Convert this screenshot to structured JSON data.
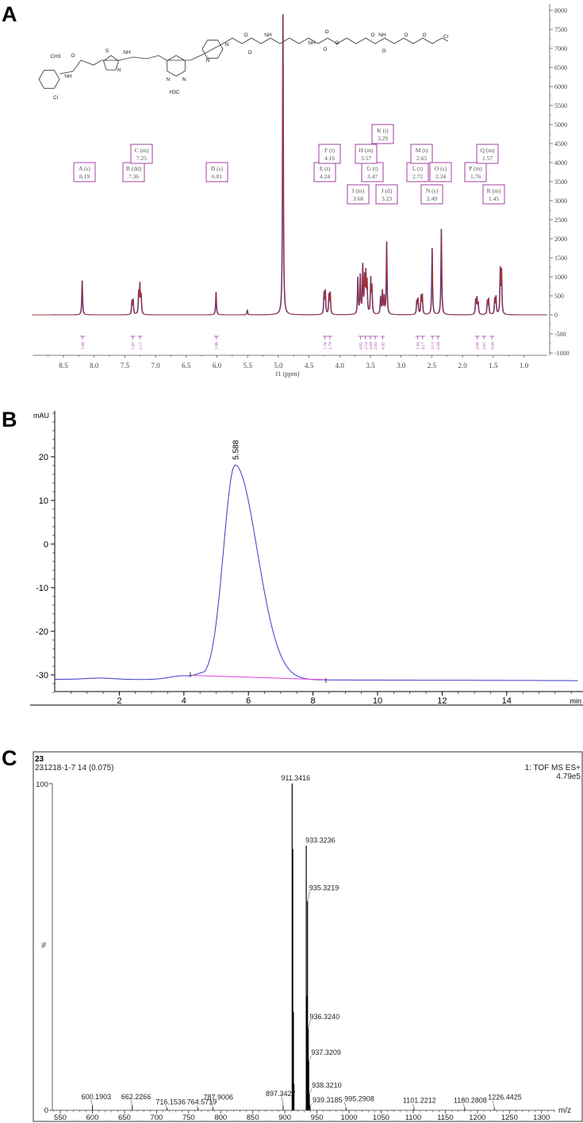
{
  "panels": {
    "a": "A",
    "b": "B",
    "c": "C"
  },
  "structure": {
    "atoms": [
      "CH3",
      "O",
      "NH",
      "Cl",
      "S",
      "N",
      "NH",
      "N",
      "N",
      "H3C",
      "N",
      "N",
      "O",
      "O",
      "NH",
      "NH",
      "O",
      "O",
      "O",
      "O",
      "NH",
      "O",
      "O",
      "O",
      "Cl"
    ]
  },
  "chart_data": [
    {
      "type": "line",
      "title": "",
      "xlabel": "f1 (ppm)",
      "ylabel": "",
      "xlim": [
        9.0,
        0.65
      ],
      "ylim": [
        -1000,
        8000
      ],
      "x_ticks": [
        "8.5",
        "8.0",
        "7.5",
        "7.0",
        "6.5",
        "6.0",
        "5.5",
        "5.0",
        "4.5",
        "4.0",
        "3.5",
        "3.0",
        "2.5",
        "2.0",
        "1.5",
        "1.0"
      ],
      "y_ticks": [
        "8000",
        "7500",
        "7000",
        "6500",
        "6000",
        "5500",
        "5000",
        "4500",
        "4000",
        "3500",
        "3000",
        "2500",
        "2000",
        "1500",
        "1000",
        "500",
        "0",
        "-500",
        "-1000"
      ],
      "y_axis_side": "right",
      "grid": false,
      "colors": {
        "trace": "#b03030",
        "trace_under": "#3a3aa0",
        "annotation": "#a040a0"
      },
      "peaks": [
        {
          "ppm": 8.19,
          "intensity": 900
        },
        {
          "ppm": 7.38,
          "intensity": 350
        },
        {
          "ppm": 7.36,
          "intensity": 380
        },
        {
          "ppm": 7.27,
          "intensity": 560
        },
        {
          "ppm": 7.25,
          "intensity": 750
        },
        {
          "ppm": 7.23,
          "intensity": 480
        },
        {
          "ppm": 6.01,
          "intensity": 600
        },
        {
          "ppm": 5.5,
          "intensity": 120
        },
        {
          "ppm": 4.92,
          "intensity": 7900
        },
        {
          "ppm": 4.25,
          "intensity": 550
        },
        {
          "ppm": 4.23,
          "intensity": 600
        },
        {
          "ppm": 4.17,
          "intensity": 500
        },
        {
          "ppm": 4.15,
          "intensity": 550
        },
        {
          "ppm": 3.7,
          "intensity": 950
        },
        {
          "ppm": 3.66,
          "intensity": 1000
        },
        {
          "ppm": 3.62,
          "intensity": 1250
        },
        {
          "ppm": 3.59,
          "intensity": 900
        },
        {
          "ppm": 3.57,
          "intensity": 1000
        },
        {
          "ppm": 3.55,
          "intensity": 800
        },
        {
          "ppm": 3.49,
          "intensity": 900
        },
        {
          "ppm": 3.47,
          "intensity": 700
        },
        {
          "ppm": 3.33,
          "intensity": 450
        },
        {
          "ppm": 3.3,
          "intensity": 600
        },
        {
          "ppm": 3.27,
          "intensity": 450
        },
        {
          "ppm": 3.23,
          "intensity": 1900
        },
        {
          "ppm": 2.74,
          "intensity": 350
        },
        {
          "ppm": 2.72,
          "intensity": 400
        },
        {
          "ppm": 2.67,
          "intensity": 450
        },
        {
          "ppm": 2.65,
          "intensity": 500
        },
        {
          "ppm": 2.49,
          "intensity": 1750
        },
        {
          "ppm": 2.34,
          "intensity": 2250
        },
        {
          "ppm": 1.78,
          "intensity": 380
        },
        {
          "ppm": 1.76,
          "intensity": 420
        },
        {
          "ppm": 1.74,
          "intensity": 300
        },
        {
          "ppm": 1.59,
          "intensity": 350
        },
        {
          "ppm": 1.57,
          "intensity": 400
        },
        {
          "ppm": 1.47,
          "intensity": 400
        },
        {
          "ppm": 1.45,
          "intensity": 450
        },
        {
          "ppm": 1.38,
          "intensity": 1150
        },
        {
          "ppm": 1.36,
          "intensity": 1100
        }
      ],
      "multiplets": [
        {
          "label": "A (s)",
          "shift": "8.19"
        },
        {
          "label": "B (dd)",
          "shift": "7.36"
        },
        {
          "label": "C (m)",
          "shift": "7.25"
        },
        {
          "label": "D (s)",
          "shift": "6.01"
        },
        {
          "label": "E (t)",
          "shift": "4.24"
        },
        {
          "label": "F (t)",
          "shift": "4.16"
        },
        {
          "label": "G (t)",
          "shift": "3.47"
        },
        {
          "label": "H (m)",
          "shift": "3.57"
        },
        {
          "label": "I (m)",
          "shift": "3.68"
        },
        {
          "label": "J (d)",
          "shift": "3.23"
        },
        {
          "label": "K (t)",
          "shift": "3.29"
        },
        {
          "label": "L (t)",
          "shift": "2.72"
        },
        {
          "label": "M (t)",
          "shift": "2.65"
        },
        {
          "label": "N (s)",
          "shift": "2.49"
        },
        {
          "label": "O (s)",
          "shift": "2.34"
        },
        {
          "label": "P (m)",
          "shift": "1.76"
        },
        {
          "label": "Q (m)",
          "shift": "1.57"
        },
        {
          "label": "R (m)",
          "shift": "1.45"
        }
      ],
      "integrals": [
        {
          "ppm": 8.19,
          "value": "1.00"
        },
        {
          "ppm": 7.37,
          "value": "1.07"
        },
        {
          "ppm": 7.25,
          "value": "2.17"
        },
        {
          "ppm": 6.01,
          "value": "1.06"
        },
        {
          "ppm": 4.24,
          "value": "1.76"
        },
        {
          "ppm": 4.16,
          "value": "1.79"
        },
        {
          "ppm": 3.66,
          "value": "4.02"
        },
        {
          "ppm": 3.58,
          "value": "2.14"
        },
        {
          "ppm": 3.5,
          "value": "4.09"
        },
        {
          "ppm": 3.42,
          "value": "2.02"
        },
        {
          "ppm": 3.3,
          "value": "4.05"
        },
        {
          "ppm": 2.73,
          "value": "1.94"
        },
        {
          "ppm": 2.65,
          "value": "4.17"
        },
        {
          "ppm": 2.49,
          "value": "3.13"
        },
        {
          "ppm": 2.4,
          "value": "3.26"
        },
        {
          "ppm": 1.76,
          "value": "2.08"
        },
        {
          "ppm": 1.65,
          "value": "2.01"
        },
        {
          "ppm": 1.52,
          "value": "4.04"
        }
      ]
    },
    {
      "type": "line",
      "title": "",
      "ylabel": "mAU",
      "xlabel": "min",
      "xlim": [
        0,
        16.2
      ],
      "ylim": [
        -34,
        30
      ],
      "x_ticks": [
        "2",
        "4",
        "6",
        "8",
        "10",
        "12",
        "14"
      ],
      "y_ticks": [
        "20",
        "10",
        "0",
        "-10",
        "-20",
        "-30"
      ],
      "grid": false,
      "colors": {
        "trace": "#3a3ac8",
        "baseline": "#e040e0"
      },
      "peaks": [
        {
          "rt": 5.588,
          "label": "5.588",
          "height": 18.2,
          "start": 4.2,
          "end": 8.4
        }
      ],
      "baseline_level": -31.0
    },
    {
      "type": "bar",
      "header": {
        "sample": "23",
        "scan": "231218-1-7 14 (0.075)",
        "mode": "1: TOF MS ES+",
        "intensity": "4.79e5"
      },
      "xlabel": "m/z",
      "ylabel": "%",
      "xlim": [
        530,
        1330
      ],
      "ylim": [
        0,
        100
      ],
      "y_ticks": [
        "100",
        "0"
      ],
      "x_ticks": [
        "550",
        "600",
        "650",
        "700",
        "750",
        "800",
        "850",
        "900",
        "950",
        "1000",
        "1050",
        "1100",
        "1150",
        "1200",
        "1250",
        "1300"
      ],
      "colors": {
        "bars": "#000000"
      },
      "peaks": [
        {
          "mz": 911.3416,
          "rel": 100,
          "label": "911.3416"
        },
        {
          "mz": 912.34,
          "rel": 80
        },
        {
          "mz": 913.34,
          "rel": 30
        },
        {
          "mz": 914.34,
          "rel": 8
        },
        {
          "mz": 933.3236,
          "rel": 81,
          "label": "933.3236"
        },
        {
          "mz": 934.33,
          "rel": 35
        },
        {
          "mz": 935.3219,
          "rel": 64,
          "label": "935.3219"
        },
        {
          "mz": 936.324,
          "rel": 25,
          "label": "936.3240"
        },
        {
          "mz": 937.3209,
          "rel": 15,
          "label": "937.3209"
        },
        {
          "mz": 938.321,
          "rel": 5,
          "label": "938.3210"
        },
        {
          "mz": 939.3185,
          "rel": 1.5,
          "label": "939.3185"
        },
        {
          "mz": 600.1903,
          "rel": 1.5,
          "label": "600.1903"
        },
        {
          "mz": 662.2266,
          "rel": 1.5,
          "label": "662.2266"
        },
        {
          "mz": 716.1536,
          "rel": 0.8,
          "label": "716.1536"
        },
        {
          "mz": 764.5719,
          "rel": 0.8,
          "label": "764.5719"
        },
        {
          "mz": 787.9006,
          "rel": 0.8,
          "label": "787.9006"
        },
        {
          "mz": 897.3427,
          "rel": 1.5,
          "label": "897.3427"
        },
        {
          "mz": 995.2908,
          "rel": 0.8,
          "label": "995.2908"
        },
        {
          "mz": 1101.2212,
          "rel": 0.8,
          "label": "1101.2212"
        },
        {
          "mz": 1180.2808,
          "rel": 0.8,
          "label": "1180.2808"
        },
        {
          "mz": 1226.4425,
          "rel": 0.8,
          "label": "1226.4425"
        }
      ]
    }
  ]
}
